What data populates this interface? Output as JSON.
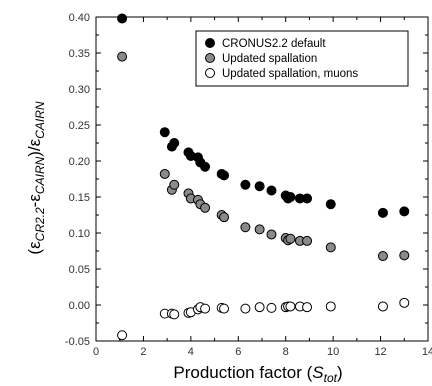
{
  "chart_data": {
    "type": "scatter",
    "xlabel_main": "Production factor (",
    "xlabel_sym": "S",
    "xlabel_sub": "tot",
    "xlabel_close": ")",
    "ylabel": "(εCR2.2-εCAIRN)/εCAIRN",
    "ylabel_parts": {
      "open": "(ε",
      "sub1": "CR2.2",
      "mid": "-ε",
      "sub2": "CAIRN",
      "close": ")/ε",
      "sub3": "CAIRN"
    },
    "xlim": [
      0,
      14
    ],
    "ylim": [
      -0.05,
      0.4
    ],
    "xticks": [
      0,
      2,
      4,
      6,
      8,
      10,
      12,
      14
    ],
    "yticks": [
      -0.05,
      0.0,
      0.05,
      0.1,
      0.15,
      0.2,
      0.25,
      0.3,
      0.35,
      0.4
    ],
    "xtick_labels": [
      "0",
      "2",
      "4",
      "6",
      "8",
      "10",
      "12",
      "14"
    ],
    "ytick_labels": [
      "-0.05",
      "0.00",
      "0.05",
      "0.10",
      "0.15",
      "0.20",
      "0.25",
      "0.30",
      "0.35",
      "0.40"
    ],
    "legend_position": "top-right",
    "series": [
      {
        "name": "CRONUS2.2 default",
        "fill": "#000000",
        "stroke": "#000000",
        "points": [
          [
            1.1,
            0.398
          ],
          [
            2.9,
            0.24
          ],
          [
            3.2,
            0.22
          ],
          [
            3.3,
            0.225
          ],
          [
            3.9,
            0.212
          ],
          [
            4.0,
            0.207
          ],
          [
            4.3,
            0.205
          ],
          [
            4.4,
            0.198
          ],
          [
            4.6,
            0.192
          ],
          [
            5.3,
            0.182
          ],
          [
            5.4,
            0.18
          ],
          [
            6.3,
            0.167
          ],
          [
            6.9,
            0.165
          ],
          [
            7.4,
            0.159
          ],
          [
            8.0,
            0.152
          ],
          [
            8.1,
            0.148
          ],
          [
            8.2,
            0.15
          ],
          [
            8.6,
            0.148
          ],
          [
            8.9,
            0.148
          ],
          [
            9.9,
            0.14
          ],
          [
            12.1,
            0.128
          ],
          [
            13.0,
            0.13
          ]
        ]
      },
      {
        "name": "Updated spallation",
        "fill": "#8a8a8a",
        "stroke": "#000000",
        "points": [
          [
            1.1,
            0.345
          ],
          [
            2.9,
            0.182
          ],
          [
            3.2,
            0.16
          ],
          [
            3.3,
            0.167
          ],
          [
            3.9,
            0.155
          ],
          [
            4.0,
            0.148
          ],
          [
            4.3,
            0.146
          ],
          [
            4.4,
            0.14
          ],
          [
            4.6,
            0.135
          ],
          [
            5.3,
            0.125
          ],
          [
            5.4,
            0.122
          ],
          [
            6.3,
            0.108
          ],
          [
            6.9,
            0.105
          ],
          [
            7.4,
            0.098
          ],
          [
            8.0,
            0.093
          ],
          [
            8.1,
            0.09
          ],
          [
            8.2,
            0.092
          ],
          [
            8.6,
            0.089
          ],
          [
            8.9,
            0.089
          ],
          [
            9.9,
            0.08
          ],
          [
            12.1,
            0.068
          ],
          [
            13.0,
            0.069
          ]
        ]
      },
      {
        "name": "Updated spallation, muons",
        "fill": "#ffffff",
        "stroke": "#000000",
        "points": [
          [
            1.1,
            -0.042
          ],
          [
            2.9,
            -0.012
          ],
          [
            3.2,
            -0.012
          ],
          [
            3.3,
            -0.013
          ],
          [
            3.9,
            -0.011
          ],
          [
            4.0,
            -0.01
          ],
          [
            4.3,
            -0.006
          ],
          [
            4.4,
            -0.003
          ],
          [
            4.6,
            -0.005
          ],
          [
            5.3,
            -0.004
          ],
          [
            5.4,
            -0.005
          ],
          [
            6.3,
            -0.005
          ],
          [
            6.9,
            -0.003
          ],
          [
            7.4,
            -0.004
          ],
          [
            8.0,
            -0.003
          ],
          [
            8.1,
            -0.002
          ],
          [
            8.2,
            -0.002
          ],
          [
            8.6,
            -0.002
          ],
          [
            8.9,
            -0.003
          ],
          [
            9.9,
            -0.002
          ],
          [
            12.1,
            -0.002
          ],
          [
            13.0,
            0.003
          ]
        ]
      }
    ]
  }
}
